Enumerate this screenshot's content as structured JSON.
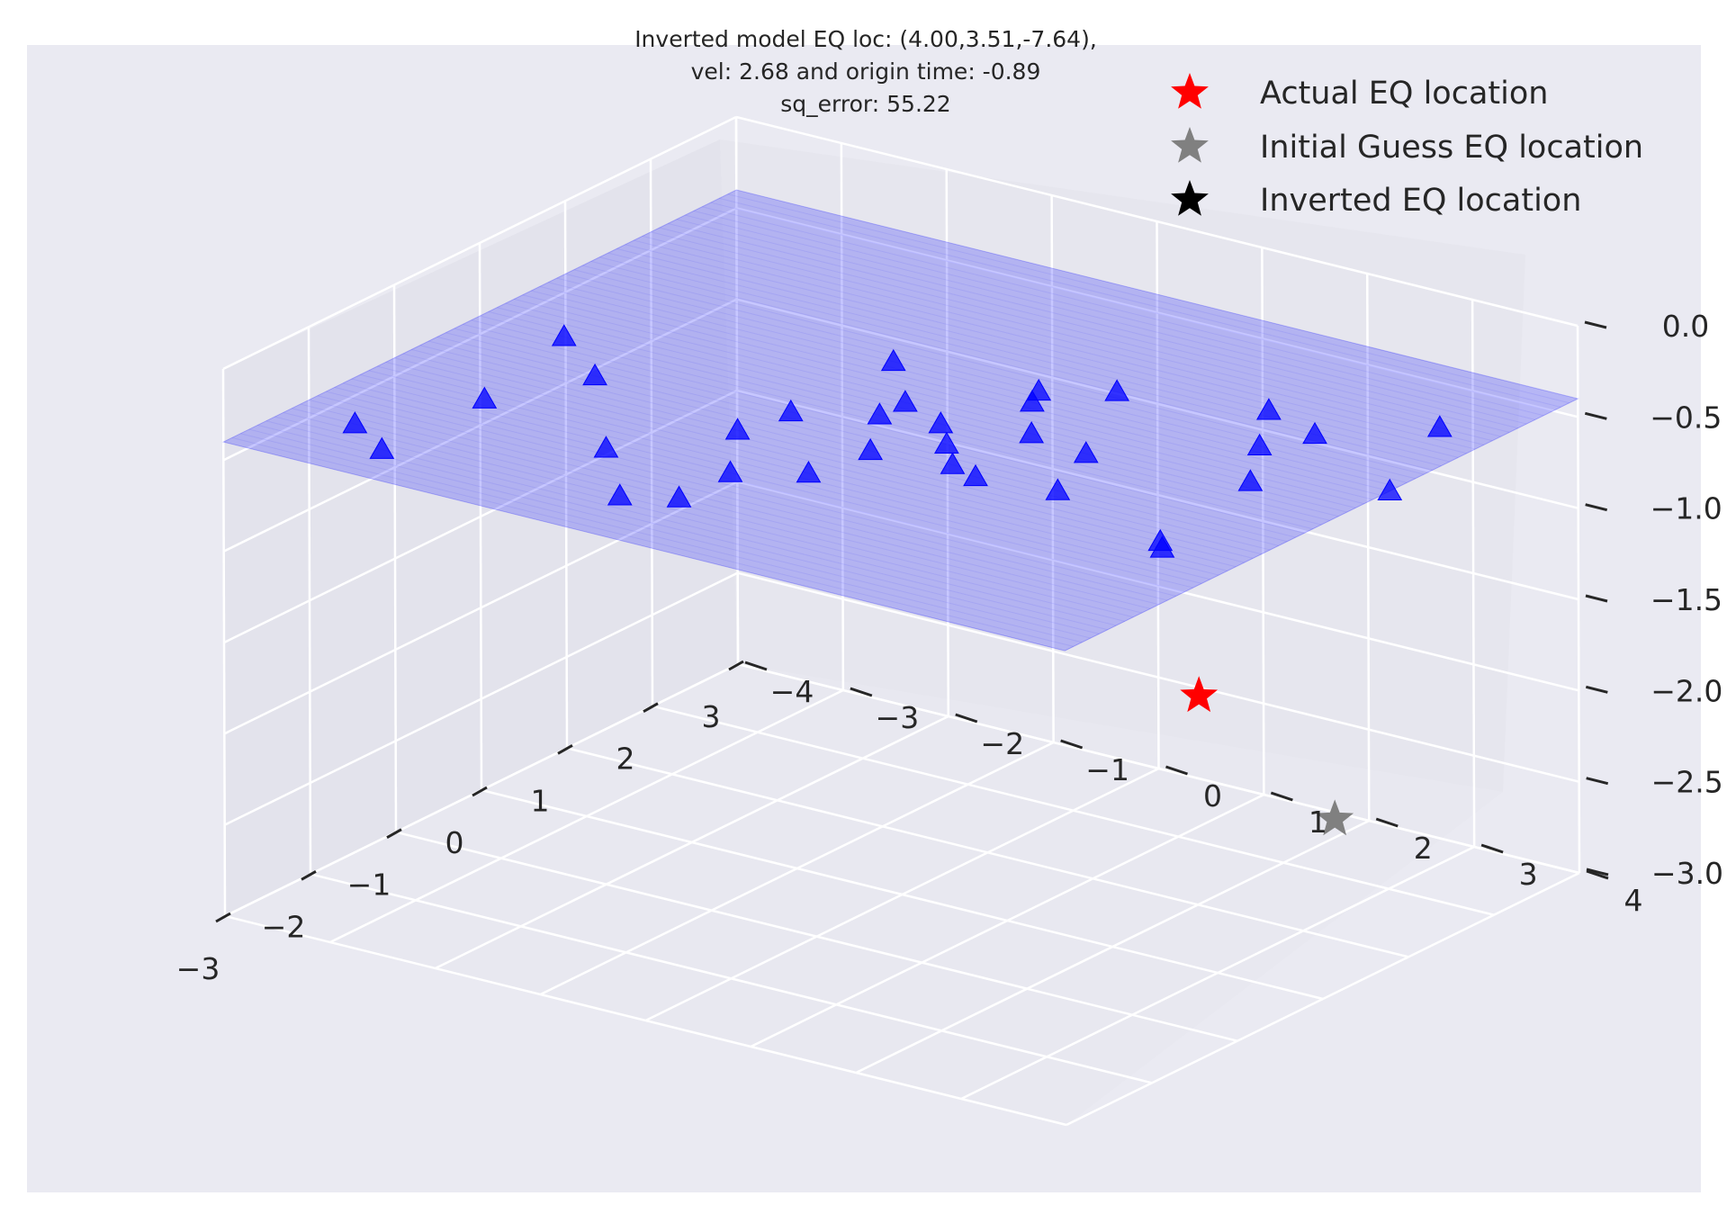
{
  "chart_data": {
    "type": "scatter",
    "projection": "3d",
    "title": [
      "Inverted model EQ loc: (4.00,3.51,-7.64),",
      "vel: 2.68 and origin time: -0.89",
      "sq_error: 55.22"
    ],
    "x_ticks": [
      "−3",
      "−2",
      "−1",
      "0",
      "1",
      "2",
      "3"
    ],
    "y_ticks": [
      "−4",
      "−3",
      "−2",
      "−1",
      "0",
      "1",
      "2",
      "3",
      "4"
    ],
    "z_ticks": [
      "0.0",
      "−0.5",
      "−1.0",
      "−1.5",
      "−2.0",
      "−2.5",
      "−3.0"
    ],
    "xlim": [
      -3,
      3
    ],
    "ylim": [
      -4,
      4
    ],
    "zlim": [
      -3,
      0
    ],
    "grid": true,
    "legend_position": "top-right",
    "legend": [
      {
        "label": "Actual EQ location",
        "color": "#ff0000"
      },
      {
        "label": "Initial Guess EQ location",
        "color": "#808080"
      },
      {
        "label": "Inverted EQ location",
        "color": "#000000"
      }
    ],
    "surface": {
      "z": -0.4,
      "color": "#0000ff",
      "opacity": 0.22
    },
    "stations": {
      "marker": "triangle",
      "color": "#0000ff",
      "z": -0.4,
      "points": [
        [
          -2.5,
          -2.9
        ],
        [
          -2.2,
          -3.4
        ],
        [
          -1.3,
          -2.9
        ],
        [
          -0.5,
          -2.5
        ],
        [
          0.0,
          -3.2
        ],
        [
          -1.6,
          -1.5
        ],
        [
          -1.5,
          -0.4
        ],
        [
          -1.2,
          0.1
        ],
        [
          -0.8,
          -0.9
        ],
        [
          -0.6,
          0.2
        ],
        [
          -0.3,
          -0.8
        ],
        [
          -0.2,
          0.6
        ],
        [
          0.1,
          0.3
        ],
        [
          0.0,
          -0.2
        ],
        [
          0.3,
          -0.2
        ],
        [
          0.3,
          1.0
        ],
        [
          0.2,
          1.6
        ],
        [
          -0.6,
          1.2
        ],
        [
          -0.5,
          1.9
        ],
        [
          0.9,
          -0.8
        ],
        [
          0.8,
          0.6
        ],
        [
          1.0,
          0.5
        ],
        [
          1.3,
          1.0
        ],
        [
          1.0,
          2.6
        ],
        [
          1.4,
          2.8
        ],
        [
          -1.0,
          3.3
        ],
        [
          -0.9,
          3.2
        ],
        [
          0.4,
          3.0
        ],
        [
          1.6,
          2.2
        ],
        [
          0.8,
          4.0
        ],
        [
          2.0,
          3.5
        ],
        [
          -2.1,
          -0.4
        ],
        [
          -2.3,
          -0.8
        ],
        [
          -0.5,
          0.9
        ]
      ]
    },
    "actual_eq": {
      "x": 2.0,
      "y": 1.2,
      "z": -2.2
    },
    "initial_guess_eq": {
      "x": 2.6,
      "y": 2.0,
      "z": -2.9
    }
  }
}
